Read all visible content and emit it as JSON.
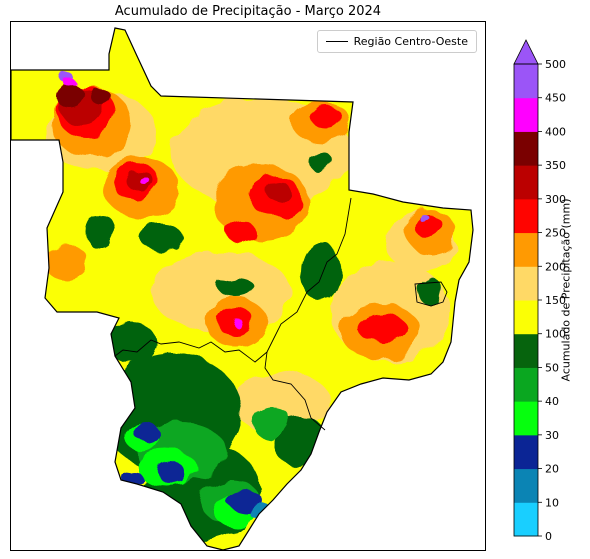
{
  "title": "Acumulado de Precipitação - Março 2024",
  "legend": {
    "label": "Região Centro-Oeste"
  },
  "colorbar": {
    "label": "Acumulado de Precipitação (mm)",
    "ticks": [
      "0",
      "10",
      "20",
      "30",
      "40",
      "50",
      "100",
      "150",
      "200",
      "250",
      "300",
      "350",
      "400",
      "450",
      "500"
    ],
    "colors": [
      "#19cfff",
      "#0b84b4",
      "#0b2595",
      "#06ff0e",
      "#0aa720",
      "#06640d",
      "#fbff05",
      "#ffd966",
      "#ff9a02",
      "#ff0400",
      "#bb0000",
      "#7a0000",
      "#ff00ff",
      "#9b55f7"
    ],
    "extend": "max"
  },
  "map": {
    "region": "Centro-Oeste",
    "precip_colors": {
      "green_dark": "#06640d",
      "green": "#0aa720",
      "green_light": "#06ff0e",
      "blue_dark": "#0b2595",
      "blue": "#0b84b4",
      "yellow": "#fbff05",
      "yellow_light": "#ffd966",
      "orange": "#ff9a02",
      "red": "#ff0400",
      "red_dark": "#bb0000",
      "maroon": "#7a0000",
      "magenta": "#ff00ff",
      "purple": "#9b55f7"
    }
  }
}
